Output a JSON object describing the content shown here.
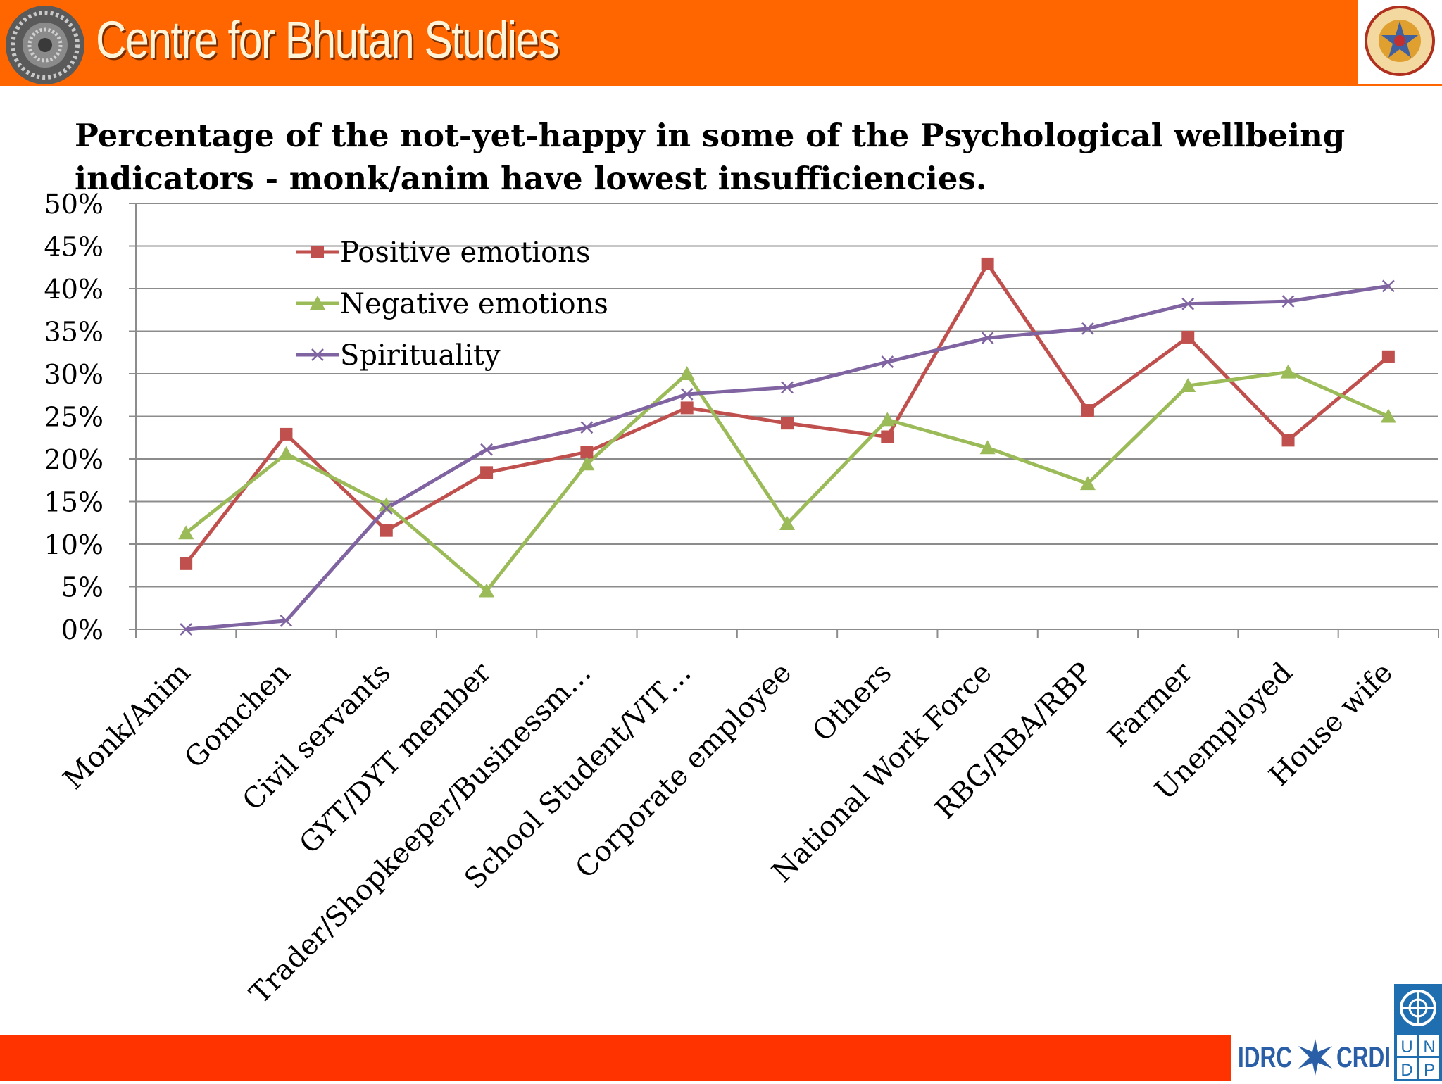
{
  "header": {
    "org_name": "Centre for Bhutan Studies"
  },
  "slide": {
    "title": "Percentage of the not-yet-happy in some of the Psychological wellbeing indicators - monk/anim have lowest insufficiencies."
  },
  "footer": {
    "idrc_left": "IDRC",
    "idrc_right": "CRDI",
    "undp_letters": [
      "U",
      "N",
      "D",
      "P"
    ]
  },
  "colors": {
    "header_bar": "#ff6600",
    "footer_bar": "#ff3300",
    "positive": "#c0504d",
    "negative": "#9bbb59",
    "spirituality": "#8064a2"
  },
  "chart_data": {
    "type": "line",
    "ylim": [
      0,
      50
    ],
    "yticks": [
      0,
      5,
      10,
      15,
      20,
      25,
      30,
      35,
      40,
      45,
      50
    ],
    "ytick_labels": [
      "0%",
      "5%",
      "10%",
      "15%",
      "20%",
      "25%",
      "30%",
      "35%",
      "40%",
      "45%",
      "50%"
    ],
    "grid": true,
    "legend_position": "top-left",
    "categories": [
      "Monk/Anim",
      "Gomchen",
      "Civil servants",
      "GYT/DYT member",
      "Trader/Shopkeeper/Businessm…",
      "School Student/VIT…",
      "Corporate employee",
      "Others",
      "National Work Force",
      "RBG/RBA/RBP",
      "Farmer",
      "Unemployed",
      "House wife"
    ],
    "series": [
      {
        "name": "Positive emotions",
        "color": "#c0504d",
        "marker": "square",
        "values": [
          7.7,
          22.9,
          11.6,
          18.4,
          20.8,
          26.0,
          24.2,
          22.6,
          42.9,
          25.7,
          34.3,
          22.2,
          32.0
        ]
      },
      {
        "name": "Negative emotions",
        "color": "#9bbb59",
        "marker": "triangle",
        "values": [
          11.3,
          20.6,
          14.6,
          4.5,
          19.4,
          30.0,
          12.4,
          24.6,
          21.3,
          17.1,
          28.6,
          30.2,
          25.0
        ]
      },
      {
        "name": "Spirituality",
        "color": "#8064a2",
        "marker": "x",
        "values": [
          0.0,
          1.0,
          14.2,
          21.1,
          23.7,
          27.6,
          28.4,
          31.4,
          34.2,
          35.3,
          38.2,
          38.5,
          40.3
        ]
      }
    ]
  }
}
